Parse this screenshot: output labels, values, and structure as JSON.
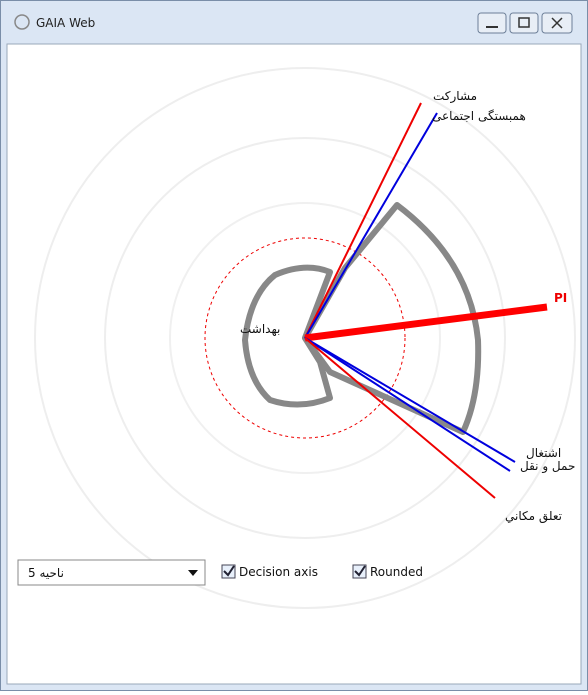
{
  "window": {
    "title": "GAIA Web"
  },
  "plot": {
    "labels": {
      "participation": "مشاركت",
      "cohesion": "همبستگی اجتماعی",
      "pi": "PI",
      "health": "بهداشت",
      "employment": "اشتغال",
      "transport": "حمل و نقل",
      "place": "تعلق مكاني"
    }
  },
  "controls": {
    "region": "ناحیه 5",
    "decision_axis": "Decision axis",
    "rounded": "Rounded"
  }
}
